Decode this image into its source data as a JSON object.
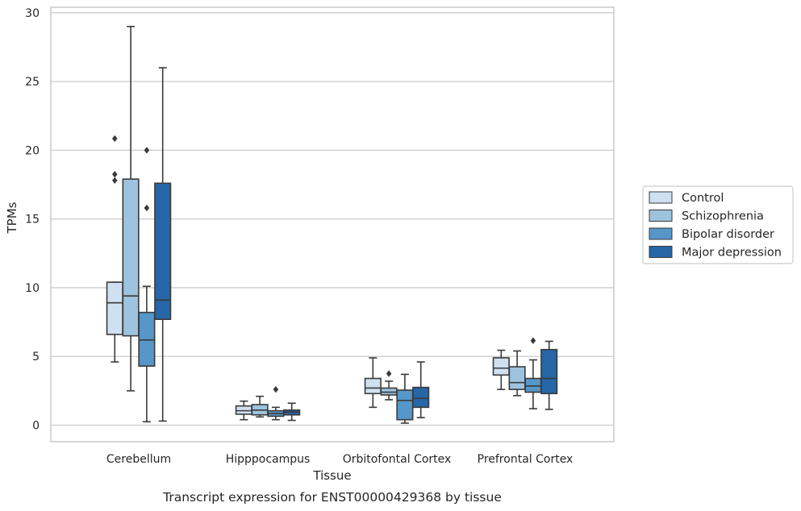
{
  "chart_data": {
    "type": "boxplot",
    "caption": "Transcript expression for ENST00000429368 by tissue",
    "xlabel": "Tissue",
    "ylabel": "TPMs",
    "ylim": [
      -1.2,
      30.4
    ],
    "yticks": [
      0,
      5,
      10,
      15,
      20,
      25,
      30
    ],
    "grid": "horizontal",
    "legend_position": "right",
    "categories": [
      "Cerebellum",
      "Hipppocampus",
      "Orbitofontal Cortex",
      "Prefrontal Cortex"
    ],
    "series": [
      {
        "name": "Control",
        "color": "#cfe0f1",
        "boxes": [
          {
            "whislo": 4.6,
            "q1": 6.6,
            "med": 8.9,
            "q3": 10.4,
            "whishi": 10.4,
            "fliers": []
          },
          {
            "whislo": 0.4,
            "q1": 0.8,
            "med": 1.05,
            "q3": 1.4,
            "whishi": 1.75,
            "fliers": []
          },
          {
            "whislo": 1.3,
            "q1": 2.3,
            "med": 2.7,
            "q3": 3.4,
            "whishi": 4.9,
            "fliers": []
          },
          {
            "whislo": 2.6,
            "q1": 3.65,
            "med": 4.15,
            "q3": 4.9,
            "whishi": 5.45,
            "fliers": []
          }
        ]
      },
      {
        "name": "Schizophrenia",
        "color": "#9dc3de",
        "boxes": [
          {
            "whislo": 2.5,
            "q1": 6.5,
            "med": 9.4,
            "q3": 17.9,
            "whishi": 29.0,
            "fliers": []
          },
          {
            "whislo": 0.6,
            "q1": 0.75,
            "med": 1.1,
            "q3": 1.5,
            "whishi": 2.1,
            "fliers": []
          },
          {
            "whislo": 1.85,
            "q1": 2.2,
            "med": 2.4,
            "q3": 2.7,
            "whishi": 3.2,
            "fliers": [
              3.75
            ]
          },
          {
            "whislo": 2.15,
            "q1": 2.6,
            "med": 3.1,
            "q3": 4.25,
            "whishi": 5.4,
            "fliers": []
          }
        ]
      },
      {
        "name": "Bipolar disorder",
        "color": "#5796c8",
        "boxes": [
          {
            "whislo": 0.25,
            "q1": 4.3,
            "med": 6.2,
            "q3": 8.2,
            "whishi": 10.1,
            "fliers": [
              15.8,
              20.0
            ]
          },
          {
            "whislo": 0.4,
            "q1": 0.65,
            "med": 0.85,
            "q3": 1.05,
            "whishi": 1.3,
            "fliers": [
              2.6
            ]
          },
          {
            "whislo": 0.15,
            "q1": 0.4,
            "med": 1.8,
            "q3": 2.55,
            "whishi": 3.7,
            "fliers": []
          },
          {
            "whislo": 1.2,
            "q1": 2.4,
            "med": 2.85,
            "q3": 3.4,
            "whishi": 4.75,
            "fliers": [
              6.15
            ]
          }
        ]
      },
      {
        "name": "Major depression",
        "color": "#2766a7",
        "boxes": [
          {
            "whislo": 0.3,
            "q1": 7.7,
            "med": 9.1,
            "q3": 17.6,
            "whishi": 26.0,
            "fliers": []
          },
          {
            "whislo": 0.35,
            "q1": 0.75,
            "med": 0.95,
            "q3": 1.1,
            "whishi": 1.6,
            "fliers": []
          },
          {
            "whislo": 0.55,
            "q1": 1.3,
            "med": 1.95,
            "q3": 2.75,
            "whishi": 4.6,
            "fliers": []
          },
          {
            "whislo": 1.15,
            "q1": 2.3,
            "med": 3.4,
            "q3": 5.5,
            "whishi": 6.1,
            "fliers": []
          }
        ]
      }
    ],
    "extra_fliers": [
      {
        "series": 0,
        "category": 0,
        "values": [
          17.8,
          18.25,
          20.85
        ]
      }
    ],
    "colors": {
      "edge": "#3a3a3a",
      "grid": "#cccccc",
      "frame": "#cccccc"
    }
  }
}
